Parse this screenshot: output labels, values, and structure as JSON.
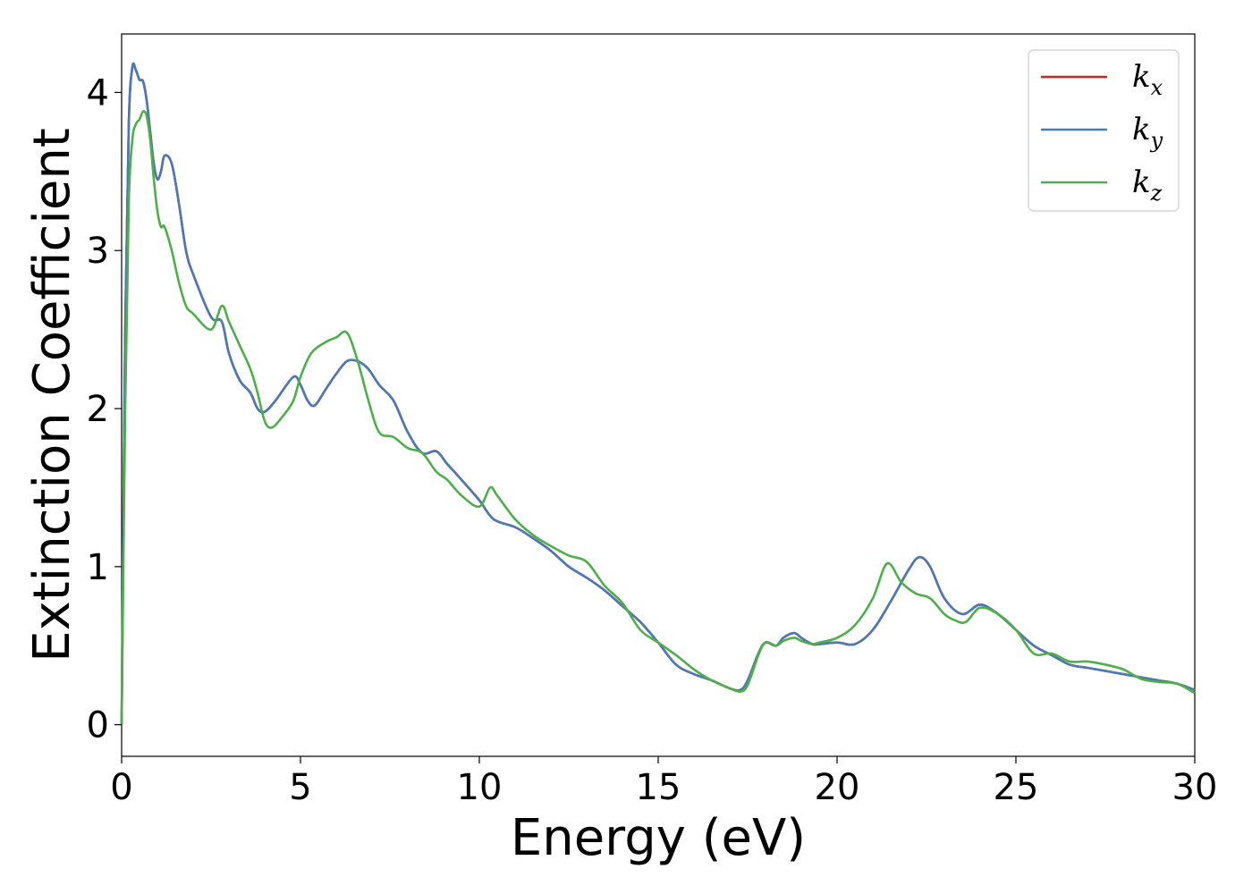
{
  "chart_data": {
    "type": "line",
    "xlabel": "Energy (eV)",
    "ylabel": "Extinction Coefficient",
    "xlim": [
      0,
      30
    ],
    "ylim": [
      -0.2,
      4.37
    ],
    "xticks": [
      0,
      5,
      10,
      15,
      20,
      25,
      30
    ],
    "yticks": [
      0,
      1,
      2,
      3,
      4
    ],
    "grid": false,
    "legend_position": "top-right",
    "series": [
      {
        "name": "k_x",
        "label_base": "k",
        "label_sub": "x",
        "color": "#e41a1c",
        "x": [
          0,
          0.1,
          0.2,
          0.3,
          0.4,
          0.5,
          0.6,
          0.7,
          0.8,
          0.9,
          1.0,
          1.1,
          1.2,
          1.4,
          1.6,
          1.8,
          2.0,
          2.5,
          2.8,
          3.0,
          3.3,
          3.6,
          3.8,
          4.0,
          4.3,
          4.8,
          5.0,
          5.2,
          5.4,
          5.7,
          6.0,
          6.3,
          6.6,
          6.9,
          7.2,
          7.6,
          8.0,
          8.4,
          8.8,
          9.1,
          9.5,
          10.0,
          10.4,
          11.0,
          11.5,
          12.0,
          12.5,
          13.0,
          13.5,
          14.0,
          14.5,
          15.0,
          15.5,
          16.0,
          16.5,
          17.0,
          17.3,
          17.5,
          17.8,
          18.0,
          18.3,
          18.5,
          18.8,
          19.0,
          19.3,
          19.5,
          20.0,
          20.5,
          21.0,
          21.5,
          22.0,
          22.3,
          22.6,
          23.0,
          23.5,
          24.0,
          24.5,
          25.0,
          25.5,
          26.0,
          26.5,
          27.0,
          27.5,
          28.0,
          28.5,
          29.0,
          29.5,
          30.0
        ],
        "y": [
          0.0,
          2.5,
          3.8,
          4.16,
          4.14,
          4.08,
          4.07,
          3.95,
          3.75,
          3.55,
          3.45,
          3.5,
          3.6,
          3.55,
          3.3,
          3.0,
          2.85,
          2.58,
          2.55,
          2.35,
          2.18,
          2.1,
          2.0,
          1.98,
          2.05,
          2.2,
          2.15,
          2.05,
          2.02,
          2.12,
          2.22,
          2.3,
          2.3,
          2.25,
          2.15,
          2.05,
          1.85,
          1.72,
          1.73,
          1.65,
          1.55,
          1.42,
          1.3,
          1.25,
          1.18,
          1.1,
          1.0,
          0.93,
          0.85,
          0.75,
          0.65,
          0.52,
          0.38,
          0.32,
          0.28,
          0.23,
          0.22,
          0.28,
          0.45,
          0.52,
          0.5,
          0.55,
          0.58,
          0.55,
          0.51,
          0.51,
          0.52,
          0.51,
          0.6,
          0.78,
          0.98,
          1.06,
          1.0,
          0.8,
          0.7,
          0.76,
          0.7,
          0.6,
          0.5,
          0.44,
          0.38,
          0.36,
          0.34,
          0.32,
          0.3,
          0.28,
          0.26,
          0.22
        ]
      },
      {
        "name": "k_y",
        "label_base": "k",
        "label_sub": "y",
        "color": "#4a7ab5",
        "x": [
          0,
          0.1,
          0.2,
          0.3,
          0.4,
          0.5,
          0.6,
          0.7,
          0.8,
          0.9,
          1.0,
          1.1,
          1.2,
          1.4,
          1.6,
          1.8,
          2.0,
          2.5,
          2.8,
          3.0,
          3.3,
          3.6,
          3.8,
          4.0,
          4.3,
          4.8,
          5.0,
          5.2,
          5.4,
          5.7,
          6.0,
          6.3,
          6.6,
          6.9,
          7.2,
          7.6,
          8.0,
          8.4,
          8.8,
          9.1,
          9.5,
          10.0,
          10.4,
          11.0,
          11.5,
          12.0,
          12.5,
          13.0,
          13.5,
          14.0,
          14.5,
          15.0,
          15.5,
          16.0,
          16.5,
          17.0,
          17.3,
          17.5,
          17.8,
          18.0,
          18.3,
          18.5,
          18.8,
          19.0,
          19.3,
          19.5,
          20.0,
          20.5,
          21.0,
          21.5,
          22.0,
          22.3,
          22.6,
          23.0,
          23.5,
          24.0,
          24.5,
          25.0,
          25.5,
          26.0,
          26.5,
          27.0,
          27.5,
          28.0,
          28.5,
          29.0,
          29.5,
          30.0
        ],
        "y": [
          0.0,
          2.5,
          3.8,
          4.16,
          4.14,
          4.08,
          4.07,
          3.95,
          3.75,
          3.55,
          3.45,
          3.5,
          3.6,
          3.55,
          3.3,
          3.0,
          2.85,
          2.58,
          2.55,
          2.35,
          2.18,
          2.1,
          2.0,
          1.98,
          2.05,
          2.2,
          2.15,
          2.05,
          2.02,
          2.12,
          2.22,
          2.3,
          2.3,
          2.25,
          2.15,
          2.05,
          1.85,
          1.72,
          1.73,
          1.65,
          1.55,
          1.42,
          1.3,
          1.25,
          1.18,
          1.1,
          1.0,
          0.93,
          0.85,
          0.75,
          0.65,
          0.52,
          0.38,
          0.32,
          0.28,
          0.23,
          0.22,
          0.28,
          0.45,
          0.52,
          0.5,
          0.55,
          0.58,
          0.55,
          0.51,
          0.51,
          0.52,
          0.51,
          0.6,
          0.78,
          0.98,
          1.06,
          1.0,
          0.8,
          0.7,
          0.76,
          0.7,
          0.6,
          0.5,
          0.44,
          0.38,
          0.36,
          0.34,
          0.32,
          0.3,
          0.28,
          0.26,
          0.22
        ]
      },
      {
        "name": "k_z",
        "label_base": "k",
        "label_sub": "z",
        "color": "#4daf4a",
        "x": [
          0,
          0.1,
          0.2,
          0.3,
          0.4,
          0.5,
          0.6,
          0.7,
          0.8,
          0.9,
          1.0,
          1.1,
          1.2,
          1.4,
          1.6,
          1.8,
          2.0,
          2.5,
          2.8,
          3.0,
          3.3,
          3.6,
          3.8,
          4.0,
          4.2,
          4.5,
          4.8,
          5.0,
          5.3,
          5.7,
          6.0,
          6.3,
          6.6,
          6.9,
          7.2,
          7.6,
          8.0,
          8.4,
          8.8,
          9.1,
          9.5,
          10.0,
          10.3,
          10.5,
          11.0,
          11.5,
          12.0,
          12.5,
          13.0,
          13.5,
          14.0,
          14.5,
          15.0,
          15.5,
          16.0,
          16.5,
          17.0,
          17.3,
          17.5,
          17.8,
          18.0,
          18.3,
          18.5,
          18.8,
          19.0,
          19.3,
          19.5,
          20.0,
          20.5,
          21.0,
          21.4,
          21.8,
          22.2,
          22.6,
          23.0,
          23.3,
          23.6,
          24.0,
          24.5,
          25.0,
          25.5,
          26.0,
          26.5,
          27.0,
          27.5,
          28.0,
          28.5,
          29.0,
          29.5,
          30.0
        ],
        "y": [
          0.0,
          2.0,
          3.3,
          3.7,
          3.8,
          3.83,
          3.88,
          3.85,
          3.7,
          3.45,
          3.25,
          3.15,
          3.15,
          3.0,
          2.8,
          2.65,
          2.6,
          2.5,
          2.65,
          2.55,
          2.4,
          2.25,
          2.1,
          1.92,
          1.88,
          1.95,
          2.05,
          2.2,
          2.35,
          2.42,
          2.45,
          2.48,
          2.3,
          2.05,
          1.85,
          1.82,
          1.75,
          1.72,
          1.6,
          1.55,
          1.45,
          1.38,
          1.5,
          1.45,
          1.3,
          1.2,
          1.13,
          1.07,
          1.03,
          0.88,
          0.77,
          0.6,
          0.52,
          0.44,
          0.35,
          0.28,
          0.23,
          0.21,
          0.25,
          0.44,
          0.52,
          0.5,
          0.53,
          0.55,
          0.53,
          0.51,
          0.52,
          0.55,
          0.63,
          0.8,
          1.02,
          0.9,
          0.83,
          0.8,
          0.7,
          0.66,
          0.65,
          0.74,
          0.7,
          0.6,
          0.45,
          0.45,
          0.4,
          0.4,
          0.38,
          0.35,
          0.29,
          0.27,
          0.26,
          0.2
        ]
      }
    ]
  }
}
